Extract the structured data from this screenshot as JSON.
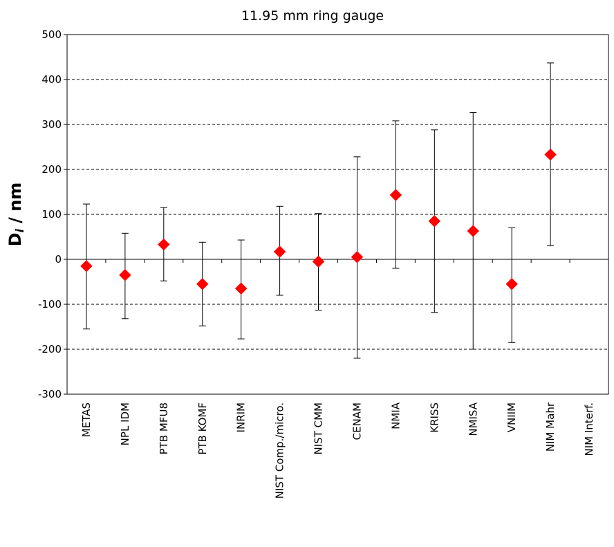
{
  "chart_data": {
    "type": "scatter",
    "title": "11.95 mm ring gauge",
    "ylabel_main": "D",
    "ylabel_sub": "i",
    "ylabel_unit": "/ nm",
    "ylim": [
      -300,
      500
    ],
    "yticks": [
      500,
      400,
      300,
      200,
      100,
      0,
      -100,
      -200,
      -300
    ],
    "grid": "horizontal-dashed",
    "marker_color": "#ff0000",
    "categories": [
      "METAS",
      "NPL IDM",
      "PTB MFU8",
      "PTB KOMF",
      "INRIM",
      "NIST Comp./micro.",
      "NIST CMM",
      "CENAM",
      "NMIA",
      "KRISS",
      "NMISA",
      "VNIIM",
      "NIM Mahr",
      "NIM Interf."
    ],
    "values": [
      -15,
      -35,
      33,
      -55,
      -65,
      17,
      -5,
      5,
      143,
      85,
      63,
      -55,
      233,
      null
    ],
    "err_low": [
      -155,
      -132,
      -48,
      -148,
      -177,
      -80,
      -113,
      -220,
      -20,
      -118,
      -200,
      -185,
      30,
      null
    ],
    "err_high": [
      123,
      58,
      115,
      38,
      43,
      118,
      102,
      228,
      308,
      288,
      327,
      70,
      437,
      null
    ]
  }
}
